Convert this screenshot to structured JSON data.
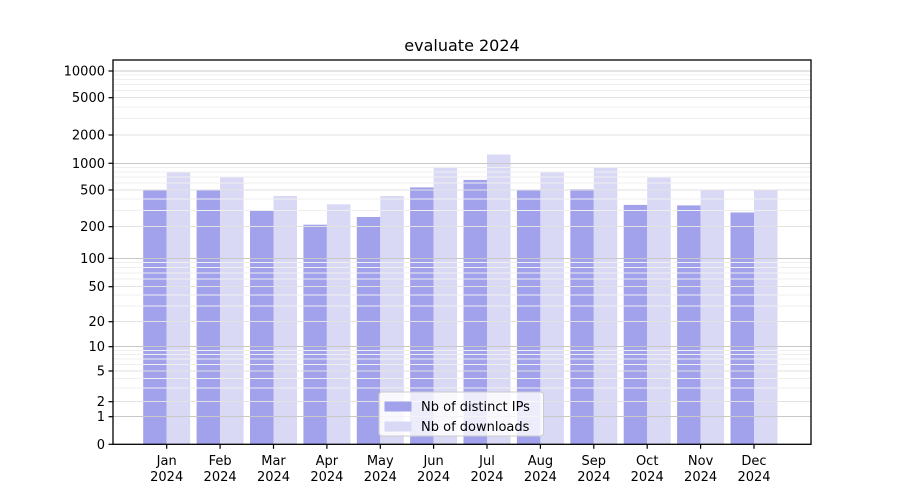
{
  "chart_data": {
    "type": "bar",
    "title": "evaluate 2024",
    "year": "2024",
    "categories": [
      "Jan",
      "Feb",
      "Mar",
      "Apr",
      "May",
      "Jun",
      "Jul",
      "Aug",
      "Sep",
      "Oct",
      "Nov",
      "Dec"
    ],
    "series": [
      {
        "name": "Nb of distinct IPs",
        "color": "#a2a2ec",
        "values": [
          505,
          500,
          300,
          210,
          255,
          535,
          650,
          500,
          510,
          345,
          340,
          285
        ]
      },
      {
        "name": "Nb of downloads",
        "color": "#d9d9f6",
        "values": [
          790,
          695,
          430,
          350,
          430,
          910,
          1240,
          795,
          885,
          690,
          500,
          505
        ]
      }
    ],
    "xlabel": "",
    "ylabel": "",
    "yscale": "symlog",
    "yticks": [
      0,
      1,
      2,
      5,
      10,
      20,
      50,
      100,
      200,
      500,
      1000,
      2000,
      5000,
      10000
    ],
    "ylim": [
      0,
      13000
    ],
    "grid": "both",
    "legend_position": "lower center",
    "colors": {
      "grid_major": "#c8c8c8",
      "grid_mid": "#e2e2e2",
      "grid_minor": "#efefef",
      "spine": "#000000"
    }
  }
}
